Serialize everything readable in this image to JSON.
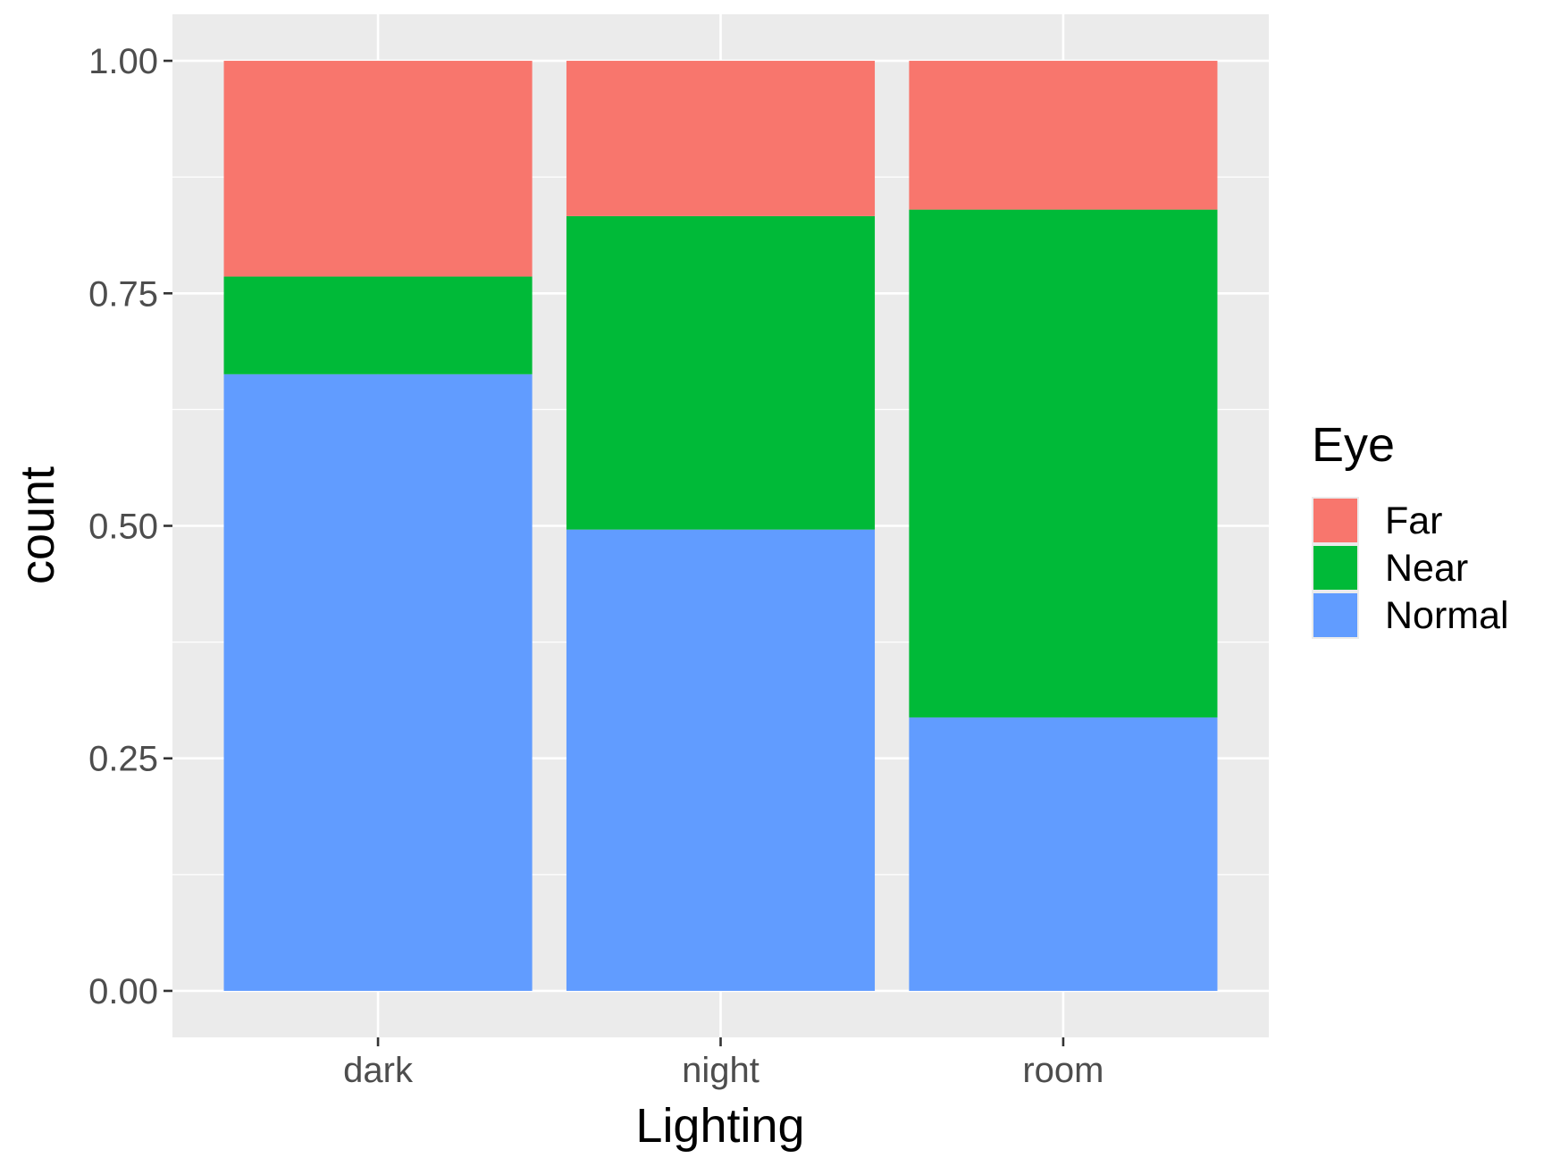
{
  "chart_data": {
    "type": "bar",
    "stacked": true,
    "position": "fill",
    "categories": [
      "dark",
      "night",
      "room"
    ],
    "series": [
      {
        "name": "Normal",
        "color": "#619CFF",
        "values": [
          0.663,
          0.496,
          0.294
        ]
      },
      {
        "name": "Near",
        "color": "#00BA38",
        "values": [
          0.105,
          0.337,
          0.546
        ]
      },
      {
        "name": "Far",
        "color": "#F8766D",
        "values": [
          0.232,
          0.167,
          0.16
        ]
      }
    ],
    "xlabel": "Lighting",
    "ylabel": "count",
    "ylim": [
      -0.05,
      1.05
    ],
    "yticks": [
      0,
      0.25,
      0.5,
      0.75,
      1
    ],
    "ytick_labels": [
      "0.00",
      "0.25",
      "0.50",
      "0.75",
      "1.00"
    ],
    "legend": {
      "title": "Eye",
      "position": "right",
      "entries": [
        "Far",
        "Near",
        "Normal"
      ]
    },
    "grid": true,
    "panel_background": "#EBEBEB",
    "grid_color": "#FFFFFF"
  }
}
